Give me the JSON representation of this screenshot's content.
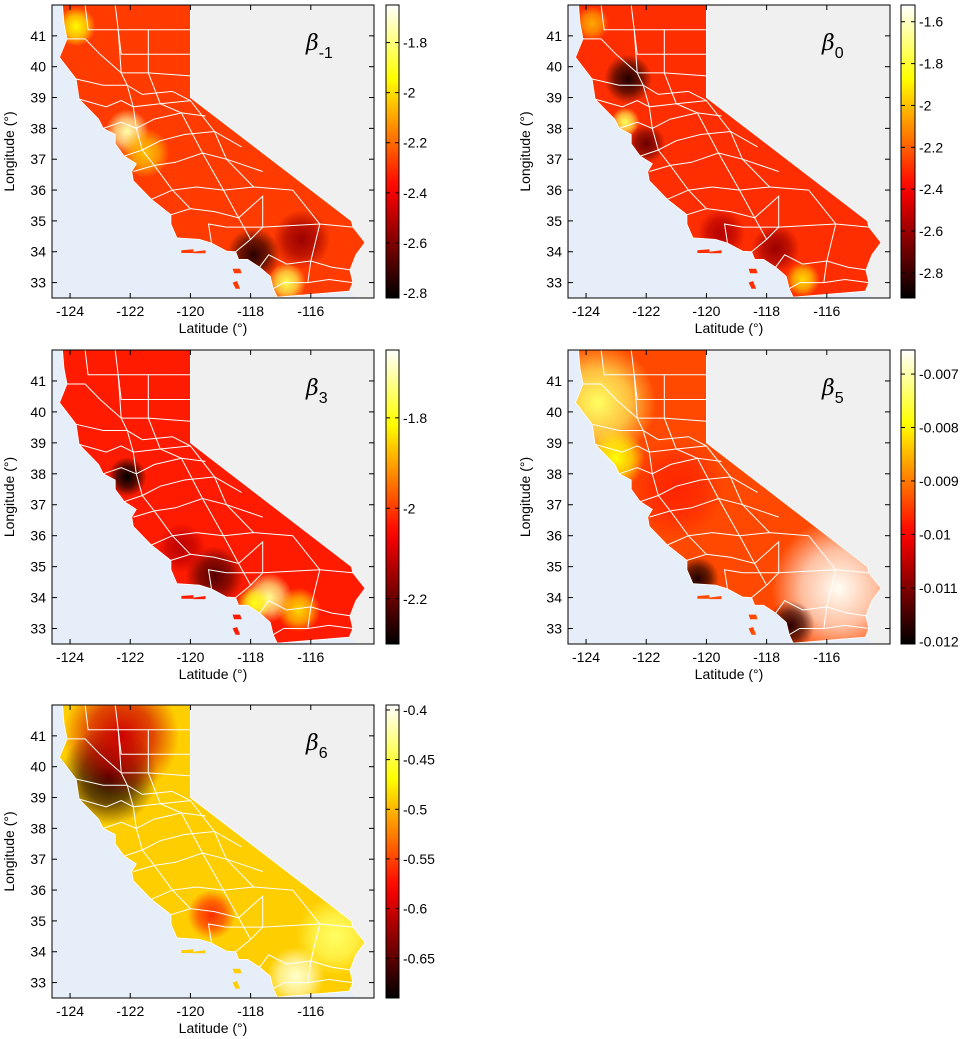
{
  "figure": {
    "panels": [
      {
        "id": "beta-m1",
        "title": {
          "symbol": "β",
          "subscript": "-1"
        },
        "xlabel": "Latitude (°)",
        "ylabel": "Longitude (°)",
        "x_ticks": [
          "-124",
          "-122",
          "-120",
          "-118",
          "-116"
        ],
        "y_ticks": [
          "41",
          "40",
          "39",
          "38",
          "37",
          "36",
          "35",
          "34",
          "33"
        ],
        "colorbar": {
          "range": [
            -2.82,
            -1.65
          ],
          "ticks": [
            -1.8,
            -2,
            -2.2,
            -2.4,
            -2.6,
            -2.8
          ],
          "tick_labels": [
            "-1.8",
            "-2",
            "-2.2",
            "-2.4",
            "-2.6",
            "-2.8"
          ]
        },
        "base_value": -2.28,
        "features": [
          {
            "lon": -122.1,
            "lat": 37.9,
            "value": -1.75,
            "radius": 0.45
          },
          {
            "lon": -117.9,
            "lat": 33.9,
            "value": -2.75,
            "radius": 0.55
          },
          {
            "lon": -116.8,
            "lat": 33.0,
            "value": -1.85,
            "radius": 0.4
          },
          {
            "lon": -116.3,
            "lat": 34.4,
            "value": -2.55,
            "radius": 0.6
          },
          {
            "lon": -123.8,
            "lat": 41.3,
            "value": -1.95,
            "radius": 0.4
          },
          {
            "lon": -121.5,
            "lat": 37.2,
            "value": -2.05,
            "radius": 0.5
          }
        ]
      },
      {
        "id": "beta-0",
        "title": {
          "symbol": "β",
          "subscript": "0"
        },
        "xlabel": "Latitude (°)",
        "ylabel": "Longitude (°)",
        "x_ticks": [
          "-124",
          "-122",
          "-120",
          "-118",
          "-116"
        ],
        "y_ticks": [
          "41",
          "40",
          "39",
          "38",
          "37",
          "36",
          "35",
          "34",
          "33"
        ],
        "colorbar": {
          "range": [
            -2.92,
            -1.52
          ],
          "ticks": [
            -1.6,
            -1.8,
            -2,
            -2.2,
            -2.4,
            -2.6,
            -2.8
          ],
          "tick_labels": [
            "-1.6",
            "-1.8",
            "-2",
            "-2.2",
            "-2.4",
            "-2.6",
            "-2.8"
          ]
        },
        "base_value": -2.3,
        "features": [
          {
            "lon": -122.6,
            "lat": 39.6,
            "value": -2.85,
            "radius": 0.5
          },
          {
            "lon": -122.7,
            "lat": 38.2,
            "value": -1.75,
            "radius": 0.3
          },
          {
            "lon": -122.0,
            "lat": 37.5,
            "value": -2.7,
            "radius": 0.4
          },
          {
            "lon": -119.5,
            "lat": 34.6,
            "value": -2.55,
            "radius": 0.5
          },
          {
            "lon": -117.7,
            "lat": 34.1,
            "value": -2.6,
            "radius": 0.5
          },
          {
            "lon": -116.8,
            "lat": 33.1,
            "value": -1.95,
            "radius": 0.35
          },
          {
            "lon": -123.8,
            "lat": 41.4,
            "value": -2.05,
            "radius": 0.35
          }
        ]
      },
      {
        "id": "beta-3",
        "title": {
          "symbol": "β",
          "subscript": "3"
        },
        "xlabel": "Latitude (°)",
        "ylabel": "Longitude (°)",
        "x_ticks": [
          "-124",
          "-122",
          "-120",
          "-118",
          "-116"
        ],
        "y_ticks": [
          "41",
          "40",
          "39",
          "38",
          "37",
          "36",
          "35",
          "34",
          "33"
        ],
        "colorbar": {
          "range": [
            -2.3,
            -1.65
          ],
          "ticks": [
            -1.8,
            -2,
            -2.2
          ],
          "tick_labels": [
            "-1.8",
            "-2",
            "-2.2"
          ]
        },
        "base_value": -2.03,
        "features": [
          {
            "lon": -122.1,
            "lat": 37.9,
            "value": -2.3,
            "radius": 0.4
          },
          {
            "lon": -119.2,
            "lat": 34.7,
            "value": -2.22,
            "radius": 0.6
          },
          {
            "lon": -117.4,
            "lat": 34.0,
            "value": -1.72,
            "radius": 0.5
          },
          {
            "lon": -117.9,
            "lat": 33.8,
            "value": -1.8,
            "radius": 0.35
          },
          {
            "lon": -116.4,
            "lat": 33.6,
            "value": -1.85,
            "radius": 0.45
          },
          {
            "lon": -120.3,
            "lat": 35.6,
            "value": -2.12,
            "radius": 0.5
          }
        ]
      },
      {
        "id": "beta-5",
        "title": {
          "symbol": "β",
          "subscript": "5"
        },
        "xlabel": "Latitude (°)",
        "ylabel": "Longitude (°)",
        "x_ticks": [
          "-124",
          "-122",
          "-120",
          "-118",
          "-116"
        ],
        "y_ticks": [
          "41",
          "40",
          "39",
          "38",
          "37",
          "36",
          "35",
          "34",
          "33"
        ],
        "colorbar": {
          "range": [
            -0.01205,
            -0.00655
          ],
          "ticks": [
            -0.007,
            -0.008,
            -0.009,
            -0.01,
            -0.011,
            -0.012
          ],
          "tick_labels": [
            "-0.007",
            "-0.008",
            "-0.009",
            "-0.01",
            "-0.011",
            "-0.012"
          ]
        },
        "base_value": -0.0094,
        "features": [
          {
            "lon": -123.6,
            "lat": 40.3,
            "value": -0.0074,
            "radius": 1.2
          },
          {
            "lon": -123.0,
            "lat": 38.5,
            "value": -0.0079,
            "radius": 0.6
          },
          {
            "lon": -115.6,
            "lat": 34.3,
            "value": -0.0066,
            "radius": 1.4
          },
          {
            "lon": -120.3,
            "lat": 34.6,
            "value": -0.0118,
            "radius": 0.45
          },
          {
            "lon": -117.2,
            "lat": 33.1,
            "value": -0.0117,
            "radius": 0.5
          },
          {
            "lon": -121.0,
            "lat": 37.5,
            "value": -0.0097,
            "radius": 1.0
          }
        ]
      },
      {
        "id": "beta-6",
        "title": {
          "symbol": "β",
          "subscript": "6"
        },
        "xlabel": "Latitude (°)",
        "ylabel": "Longitude (°)",
        "x_ticks": [
          "-124",
          "-122",
          "-120",
          "-118",
          "-116"
        ],
        "y_ticks": [
          "41",
          "40",
          "39",
          "38",
          "37",
          "36",
          "35",
          "34",
          "33"
        ],
        "colorbar": {
          "range": [
            -0.69,
            -0.395
          ],
          "ticks": [
            -0.4,
            -0.45,
            -0.5,
            -0.55,
            -0.6,
            -0.65
          ],
          "tick_labels": [
            "-0.4",
            "-0.45",
            "-0.5",
            "-0.55",
            "-0.6",
            "-0.65"
          ]
        },
        "base_value": -0.49,
        "features": [
          {
            "lon": -122.7,
            "lat": 39.7,
            "value": -0.68,
            "radius": 1.0
          },
          {
            "lon": -122.3,
            "lat": 41.0,
            "value": -0.6,
            "radius": 1.2
          },
          {
            "lon": -119.3,
            "lat": 35.2,
            "value": -0.56,
            "radius": 0.5
          },
          {
            "lon": -116.5,
            "lat": 33.2,
            "value": -0.41,
            "radius": 0.6
          },
          {
            "lon": -115.2,
            "lat": 34.5,
            "value": -0.44,
            "radius": 0.8
          }
        ]
      }
    ],
    "colormap": "hot",
    "colors": {
      "state_outside": "#f0f0f0",
      "ocean": "#e6eef9",
      "county_lines": "#ffffff"
    },
    "lon_range": [
      -124.6,
      -113.9
    ],
    "lat_range": [
      32.5,
      42.0
    ]
  }
}
